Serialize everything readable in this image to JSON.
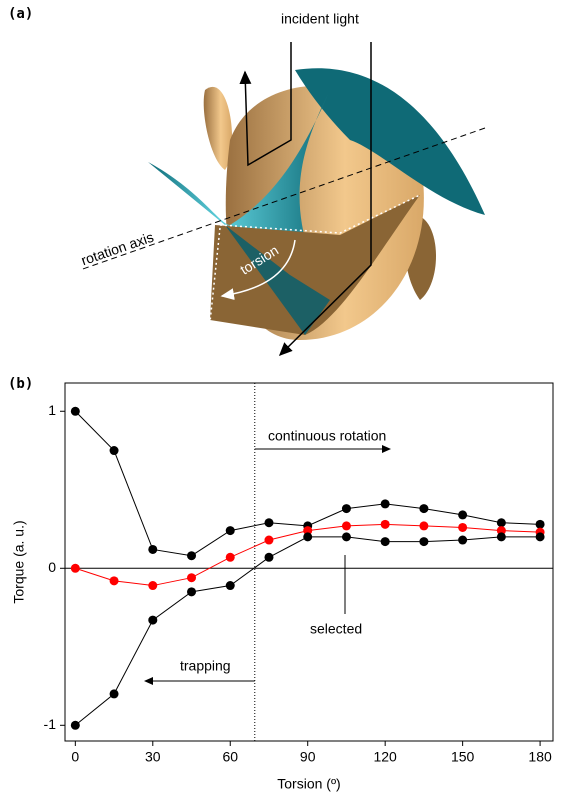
{
  "panel_a": {
    "label": "(a)",
    "incident_light": "incident light",
    "rotation_axis": "rotation axis",
    "torsion": "torsion"
  },
  "chart_data": {
    "type": "line",
    "label": "(b)",
    "x_label": "Torsion (º)",
    "y_label": "Torque (a. u.)",
    "x": [
      0,
      15,
      30,
      45,
      60,
      75,
      90,
      105,
      120,
      135,
      150,
      165,
      180
    ],
    "series": [
      {
        "color": "#000000",
        "values": [
          1,
          0.75,
          0.12,
          0.08,
          0.24,
          0.29,
          0.27,
          0.38,
          0.41,
          0.38,
          0.34,
          0.29,
          0.28
        ]
      },
      {
        "color": "#ff0000",
        "values": [
          0,
          -0.08,
          -0.11,
          -0.06,
          0.07,
          0.18,
          0.24,
          0.27,
          0.28,
          0.27,
          0.26,
          0.24,
          0.23
        ]
      },
      {
        "color": "#000000",
        "values": [
          -1,
          -0.8,
          -0.33,
          -0.15,
          -0.11,
          0.07,
          0.2,
          0.2,
          0.17,
          0.17,
          0.18,
          0.2,
          0.2
        ]
      }
    ],
    "xlim": [
      -4,
      185
    ],
    "ylim": [
      -1.1,
      1.18
    ],
    "xticks": [
      0,
      30,
      60,
      90,
      120,
      150,
      180
    ],
    "yticks": [
      -1,
      0,
      1
    ],
    "divider_x": 69.5,
    "annotations": {
      "continuous": "continuous rotation",
      "trapping": "trapping",
      "selected": "selected"
    }
  }
}
